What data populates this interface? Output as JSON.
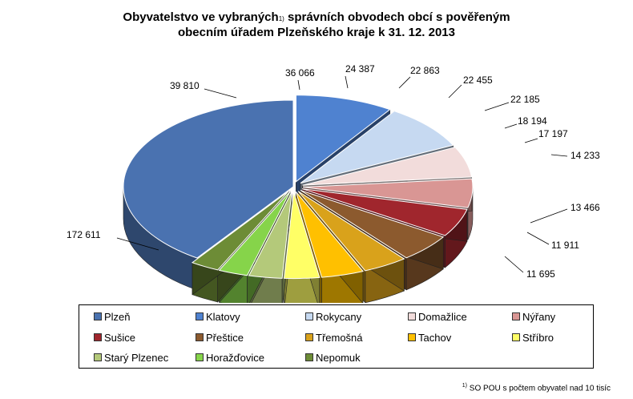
{
  "title": {
    "line1_a": "Obyvatelstvo ve vybraných",
    "line1_sup": "1)",
    "line1_b": " správních obvodech obcí s pověřeným",
    "line2": "obecním úřadem Plzeňského kraje k 31. 12. 2013"
  },
  "chart_data": {
    "type": "pie",
    "title": "Obyvatelstvo ve vybraných správních obvodech obcí s pověřeným obecním úřadem Plzeňského kraje k 31. 12. 2013",
    "three_d": true,
    "legend_position": "bottom",
    "slices": [
      {
        "name": "Plzeň",
        "value": 172611,
        "label": "172 611",
        "color": "#4a72b0",
        "exploded": false
      },
      {
        "name": "Klatovy",
        "value": 39810,
        "label": "39 810",
        "color": "#4f82d0",
        "exploded": true
      },
      {
        "name": "Rokycany",
        "value": 36066,
        "label": "36 066",
        "color": "#c6d9f1",
        "exploded": true
      },
      {
        "name": "Domažlice",
        "value": 24387,
        "label": "24 387",
        "color": "#f2dcdb",
        "exploded": true
      },
      {
        "name": "Nýřany",
        "value": 22863,
        "label": "22 863",
        "color": "#d99694",
        "exploded": true
      },
      {
        "name": "Sušice",
        "value": 22455,
        "label": "22 455",
        "color": "#a0262d",
        "exploded": true
      },
      {
        "name": "Přeštice",
        "value": 22185,
        "label": "22 185",
        "color": "#8c5a2e",
        "exploded": true
      },
      {
        "name": "Třemošná",
        "value": 18194,
        "label": "18 194",
        "color": "#d9a21b",
        "exploded": true
      },
      {
        "name": "Tachov",
        "value": 17197,
        "label": "17 197",
        "color": "#ffc000",
        "exploded": true
      },
      {
        "name": "Stříbro",
        "value": 14233,
        "label": "14 233",
        "color": "#ffff66",
        "exploded": true
      },
      {
        "name": "Starý Plzenec",
        "value": 13466,
        "label": "13 466",
        "color": "#b4c97a",
        "exploded": true
      },
      {
        "name": "Horažďovice",
        "value": 11911,
        "label": "11 911",
        "color": "#86d44a",
        "exploded": true
      },
      {
        "name": "Nepomuk",
        "value": 11695,
        "label": "11 695",
        "color": "#6d8c36",
        "exploded": true
      }
    ]
  },
  "footnote": {
    "sup": "1)",
    "text": " SO POU s počtem obyvatel nad 10 tisíc"
  }
}
